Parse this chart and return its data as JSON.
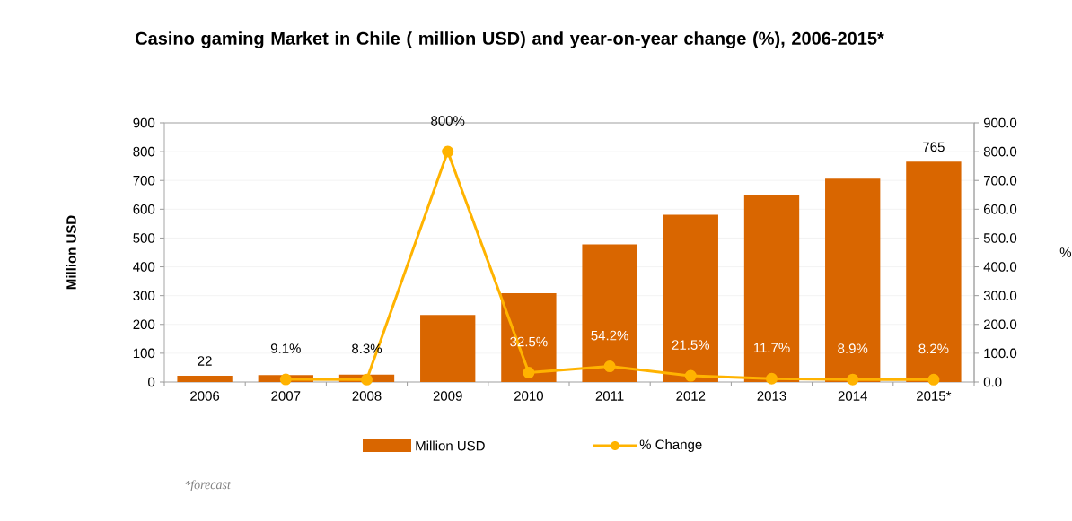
{
  "chart_data": {
    "type": "bar",
    "title": "Casino gaming Market in Chile ( million USD) and year-on-year change (%), 2006-2015*",
    "ylabel": "Million USD",
    "y2label": "%",
    "categories": [
      "2006",
      "2007",
      "2008",
      "2009",
      "2010",
      "2011",
      "2012",
      "2013",
      "2014",
      "2015*"
    ],
    "series": [
      {
        "name": "Million USD",
        "color": "#d96600",
        "values": [
          22,
          24,
          26,
          233,
          308,
          478,
          581,
          648,
          706,
          765
        ],
        "value_labels": [
          "22",
          null,
          null,
          null,
          null,
          null,
          null,
          null,
          null,
          "765"
        ]
      },
      {
        "name": "% Change",
        "type": "line",
        "axis": "y2",
        "color": "#ffb300",
        "values": [
          null,
          9.1,
          8.3,
          800,
          32.5,
          54.2,
          21.5,
          11.7,
          8.9,
          8.2
        ],
        "value_labels": [
          null,
          "9.1%",
          "8.3%",
          "800%",
          "32.5%",
          "54.2%",
          "21.5%",
          "11.7%",
          "8.9%",
          "8.2%"
        ]
      }
    ],
    "ylim": [
      0,
      900
    ],
    "yticks": [
      0,
      100,
      200,
      300,
      400,
      500,
      600,
      700,
      800,
      900
    ],
    "y2lim": [
      0,
      900
    ],
    "y2ticks": [
      {
        "value": 0,
        "label": "0.0"
      },
      {
        "value": 100,
        "label": "100.0"
      },
      {
        "value": 200,
        "label": "200.0"
      },
      {
        "value": 300,
        "label": "300.0"
      },
      {
        "value": 400,
        "label": "400.0"
      },
      {
        "value": 500,
        "label": "500.0"
      },
      {
        "value": 600,
        "label": "600.0"
      },
      {
        "value": 700,
        "label": "700.0"
      },
      {
        "value": 800,
        "label": "800.0"
      },
      {
        "value": 900,
        "label": "900.0"
      }
    ],
    "grid": "y",
    "legend": "bottom",
    "marker": "circle",
    "line_style": "solid",
    "annotations": [
      "*forecast"
    ]
  }
}
